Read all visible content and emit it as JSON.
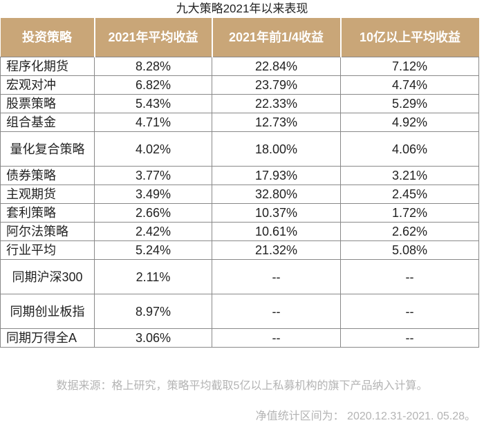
{
  "title": "九大策略2021年以来表现",
  "columns": [
    "投资策略",
    "2021年平均收益",
    "2021年前1/4收益",
    "10亿以上平均收益"
  ],
  "rows": [
    {
      "name": "程序化期货",
      "avg": "8.28%",
      "top": "22.84%",
      "big": "7.12%"
    },
    {
      "name": "宏观对冲",
      "avg": "6.82%",
      "top": "23.79%",
      "big": "4.74%"
    },
    {
      "name": "股票策略",
      "avg": "5.43%",
      "top": "22.33%",
      "big": "5.29%"
    },
    {
      "name": "组合基金",
      "avg": "4.71%",
      "top": "12.73%",
      "big": "4.92%"
    },
    {
      "name": "量化复合策略",
      "avg": "4.02%",
      "top": "18.00%",
      "big": "4.06%"
    },
    {
      "name": "债券策略",
      "avg": "3.77%",
      "top": "17.93%",
      "big": "3.21%"
    },
    {
      "name": "主观期货",
      "avg": "3.49%",
      "top": "32.80%",
      "big": "2.45%"
    },
    {
      "name": "套利策略",
      "avg": "2.66%",
      "top": "10.37%",
      "big": "1.72%"
    },
    {
      "name": "阿尔法策略",
      "avg": "2.42%",
      "top": "10.61%",
      "big": "2.62%"
    },
    {
      "name": "行业平均",
      "avg": "5.24%",
      "top": "21.32%",
      "big": "5.08%"
    },
    {
      "name": "同期沪深300",
      "avg": "2.11%",
      "top": "--",
      "big": "--"
    },
    {
      "name": "同期创业板指",
      "avg": "8.97%",
      "top": "--",
      "big": "--"
    },
    {
      "name": "同期万得全A",
      "avg": "3.06%",
      "top": "--",
      "big": "--"
    }
  ],
  "footnote_source": "数据来源：格上研究，策略平均截取5亿以上私募机构的旗下产品纳入计算。",
  "footnote_period": "净值统计区间为： 2020.12.31-2021. 05.28。"
}
